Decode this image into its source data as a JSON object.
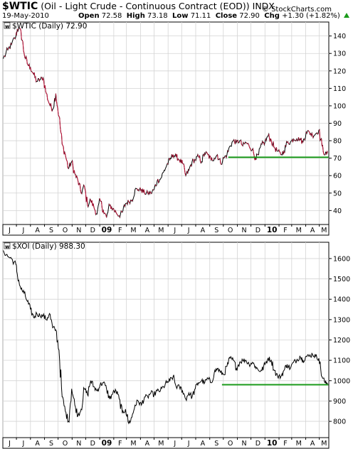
{
  "header": {
    "ticker": "$WTIC",
    "description": "(Oil - Light Crude - Continuous Contract (EOD)) INDX",
    "date": "19-May-2010",
    "open_label": "Open",
    "open": "72.58",
    "high_label": "High",
    "high": "73.18",
    "low_label": "Low",
    "low": "71.11",
    "close_label": "Close",
    "close": "72.90",
    "chg_label": "Chg",
    "chg": "+1.30 (+1.82%)",
    "flag_icon": "up-triangle-icon",
    "watermark": "© StockCharts.com"
  },
  "chart_data": [
    {
      "type": "line",
      "title": "$WTIC (Daily) 72.90",
      "legend_marker": "w",
      "line_color": "#000000",
      "down_color": "#c8143c",
      "ylim": [
        32,
        148
      ],
      "y_ticks": [
        40,
        50,
        60,
        70,
        80,
        90,
        100,
        110,
        120,
        130,
        140
      ],
      "x_range": [
        "2008-06-01",
        "2010-05-22"
      ],
      "grid": true,
      "support_line": {
        "color": "#1a9a1a",
        "from": "2009-10-12",
        "to": "2010-05-21",
        "value": 70.5
      },
      "series": [
        {
          "x": [
            "2008-06-02",
            "2008-06-12",
            "2008-06-20",
            "2008-06-30",
            "2008-07-03",
            "2008-07-11",
            "2008-07-18",
            "2008-07-25",
            "2008-08-01",
            "2008-08-08",
            "2008-08-15",
            "2008-08-22",
            "2008-08-29",
            "2008-09-05",
            "2008-09-12",
            "2008-09-19",
            "2008-09-26",
            "2008-10-03",
            "2008-10-10",
            "2008-10-17",
            "2008-10-24",
            "2008-10-31",
            "2008-11-07",
            "2008-11-14",
            "2008-11-21",
            "2008-11-28",
            "2008-12-05",
            "2008-12-12",
            "2008-12-19",
            "2008-12-26",
            "2009-01-02",
            "2009-01-09",
            "2009-01-16",
            "2009-01-23",
            "2009-01-30",
            "2009-02-06",
            "2009-02-13",
            "2009-02-20",
            "2009-02-27",
            "2009-03-06",
            "2009-03-13",
            "2009-03-20",
            "2009-03-27",
            "2009-04-03",
            "2009-04-10",
            "2009-04-17",
            "2009-04-24",
            "2009-05-01",
            "2009-05-08",
            "2009-05-15",
            "2009-05-22",
            "2009-05-29",
            "2009-06-05",
            "2009-06-12",
            "2009-06-19",
            "2009-06-26",
            "2009-07-03",
            "2009-07-10",
            "2009-07-17",
            "2009-07-24",
            "2009-07-31",
            "2009-08-07",
            "2009-08-14",
            "2009-08-21",
            "2009-08-28",
            "2009-09-04",
            "2009-09-11",
            "2009-09-18",
            "2009-09-25",
            "2009-10-02",
            "2009-10-09",
            "2009-10-16",
            "2009-10-23",
            "2009-10-30",
            "2009-11-06",
            "2009-11-13",
            "2009-11-20",
            "2009-11-27",
            "2009-12-04",
            "2009-12-11",
            "2009-12-18",
            "2009-12-25",
            "2010-01-01",
            "2010-01-08",
            "2010-01-15",
            "2010-01-22",
            "2010-01-29",
            "2010-02-05",
            "2010-02-12",
            "2010-02-19",
            "2010-02-26",
            "2010-03-05",
            "2010-03-12",
            "2010-03-19",
            "2010-03-26",
            "2010-04-02",
            "2010-04-09",
            "2010-04-16",
            "2010-04-23",
            "2010-04-30",
            "2010-05-07",
            "2010-05-14",
            "2010-05-19"
          ],
          "values": [
            127,
            132,
            135,
            140,
            144,
            143,
            130,
            124,
            122,
            118,
            114,
            115,
            116,
            107,
            101,
            98,
            107,
            94,
            78,
            72,
            64,
            68,
            61,
            57,
            50,
            54,
            43,
            46,
            42,
            38,
            46,
            40,
            36,
            43,
            41,
            39,
            37,
            39,
            44,
            45,
            46,
            52,
            52,
            52,
            50,
            50,
            50,
            52,
            57,
            58,
            62,
            66,
            69,
            72,
            71,
            69,
            67,
            60,
            63,
            68,
            69,
            71,
            68,
            73,
            72,
            69,
            70,
            72,
            67,
            70,
            72,
            77,
            80,
            79,
            80,
            77,
            79,
            77,
            75,
            70,
            72,
            78,
            79,
            83,
            80,
            76,
            74,
            72,
            74,
            79,
            79,
            81,
            81,
            81,
            79,
            85,
            85,
            83,
            84,
            86,
            77,
            72,
            72.9
          ]
        }
      ]
    },
    {
      "type": "line",
      "title": "$XOI (Daily) 988.30",
      "legend_marker": "w",
      "line_color": "#000000",
      "ylim": [
        720,
        1680
      ],
      "y_ticks": [
        800,
        900,
        1000,
        1100,
        1200,
        1300,
        1400,
        1500,
        1600
      ],
      "x_range": [
        "2008-06-01",
        "2010-05-22"
      ],
      "grid": true,
      "support_line": {
        "color": "#1a9a1a",
        "from": "2009-09-28",
        "to": "2010-05-21",
        "value": 980
      },
      "series": [
        {
          "x": [
            "2008-06-02",
            "2008-06-12",
            "2008-06-20",
            "2008-06-30",
            "2008-07-03",
            "2008-07-11",
            "2008-07-18",
            "2008-07-25",
            "2008-08-01",
            "2008-08-08",
            "2008-08-15",
            "2008-08-22",
            "2008-08-29",
            "2008-09-05",
            "2008-09-12",
            "2008-09-19",
            "2008-09-26",
            "2008-10-03",
            "2008-10-10",
            "2008-10-17",
            "2008-10-24",
            "2008-10-31",
            "2008-11-07",
            "2008-11-14",
            "2008-11-21",
            "2008-11-28",
            "2008-12-05",
            "2008-12-12",
            "2008-12-19",
            "2008-12-26",
            "2009-01-02",
            "2009-01-09",
            "2009-01-16",
            "2009-01-23",
            "2009-01-30",
            "2009-02-06",
            "2009-02-13",
            "2009-02-20",
            "2009-02-27",
            "2009-03-06",
            "2009-03-13",
            "2009-03-20",
            "2009-03-27",
            "2009-04-03",
            "2009-04-10",
            "2009-04-17",
            "2009-04-24",
            "2009-05-01",
            "2009-05-08",
            "2009-05-15",
            "2009-05-22",
            "2009-05-29",
            "2009-06-05",
            "2009-06-12",
            "2009-06-19",
            "2009-06-26",
            "2009-07-03",
            "2009-07-10",
            "2009-07-17",
            "2009-07-24",
            "2009-07-31",
            "2009-08-07",
            "2009-08-14",
            "2009-08-21",
            "2009-08-28",
            "2009-09-04",
            "2009-09-11",
            "2009-09-18",
            "2009-09-25",
            "2009-10-02",
            "2009-10-09",
            "2009-10-16",
            "2009-10-23",
            "2009-10-30",
            "2009-11-06",
            "2009-11-13",
            "2009-11-20",
            "2009-11-27",
            "2009-12-04",
            "2009-12-11",
            "2009-12-18",
            "2009-12-25",
            "2010-01-01",
            "2010-01-08",
            "2010-01-15",
            "2010-01-22",
            "2010-01-29",
            "2010-02-05",
            "2010-02-12",
            "2010-02-19",
            "2010-02-26",
            "2010-03-05",
            "2010-03-12",
            "2010-03-19",
            "2010-03-26",
            "2010-04-02",
            "2010-04-09",
            "2010-04-16",
            "2010-04-23",
            "2010-04-30",
            "2010-05-07",
            "2010-05-14",
            "2010-05-19"
          ],
          "values": [
            1640,
            1610,
            1600,
            1570,
            1520,
            1450,
            1430,
            1390,
            1350,
            1310,
            1330,
            1320,
            1320,
            1300,
            1330,
            1260,
            1250,
            1150,
            920,
            850,
            800,
            960,
            880,
            830,
            860,
            960,
            930,
            1000,
            970,
            950,
            980,
            990,
            960,
            910,
            940,
            950,
            910,
            840,
            860,
            790,
            820,
            880,
            900,
            880,
            920,
            920,
            940,
            930,
            950,
            950,
            970,
            990,
            1000,
            1020,
            970,
            970,
            950,
            910,
            940,
            920,
            960,
            990,
            1000,
            990,
            1010,
            990,
            1040,
            1060,
            1040,
            1030,
            1070,
            1110,
            1100,
            1060,
            1090,
            1100,
            1100,
            1080,
            1090,
            1070,
            1050,
            1050,
            1080,
            1110,
            1100,
            1050,
            1020,
            1020,
            1050,
            1080,
            1060,
            1090,
            1100,
            1120,
            1100,
            1120,
            1120,
            1130,
            1120,
            1110,
            1020,
            990,
            988.3
          ]
        }
      ]
    }
  ],
  "x_axis_labels": [
    "J",
    "J",
    "A",
    "S",
    "O",
    "N",
    "D",
    "09",
    "F",
    "M",
    "A",
    "M",
    "J",
    "J",
    "A",
    "S",
    "O",
    "N",
    "D",
    "10",
    "F",
    "M",
    "A",
    "M"
  ],
  "x_axis_dates": [
    "2008-06-01",
    "2008-07-01",
    "2008-08-01",
    "2008-09-01",
    "2008-10-01",
    "2008-11-01",
    "2008-12-01",
    "2009-01-01",
    "2009-02-01",
    "2009-03-01",
    "2009-04-01",
    "2009-05-01",
    "2009-06-01",
    "2009-07-01",
    "2009-08-01",
    "2009-09-01",
    "2009-10-01",
    "2009-11-01",
    "2009-12-01",
    "2010-01-01",
    "2010-02-01",
    "2010-03-01",
    "2010-04-01",
    "2010-05-01"
  ],
  "x_axis_bold": [
    "09",
    "10"
  ]
}
